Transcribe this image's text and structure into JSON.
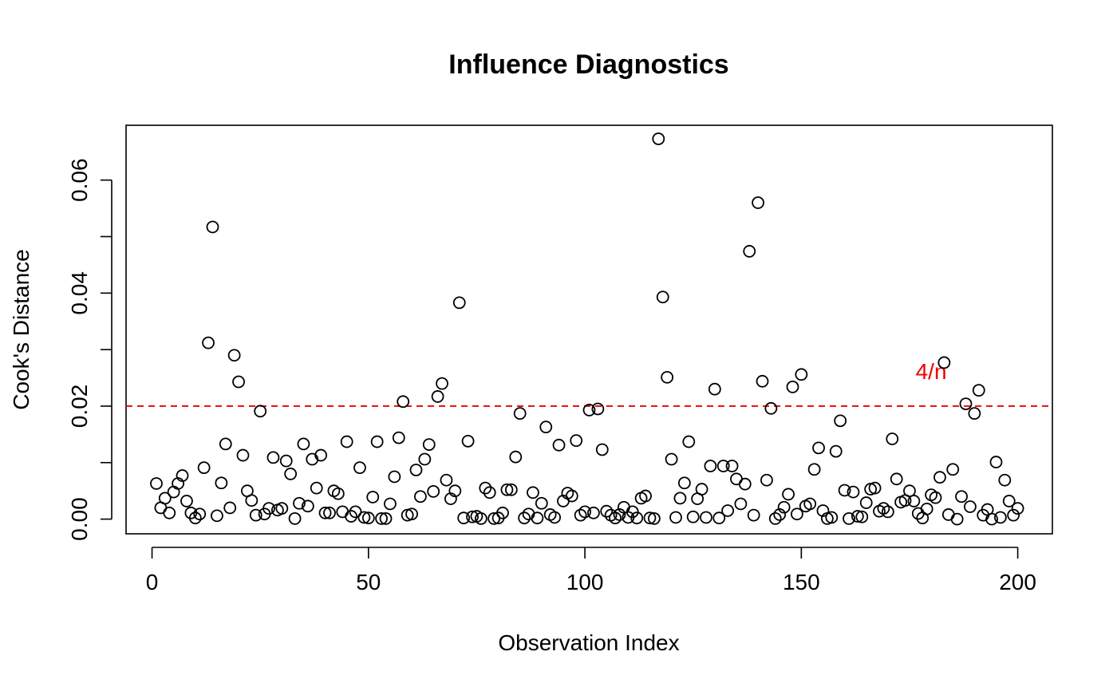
{
  "chart_data": {
    "type": "scatter",
    "title": "Influence Diagnostics",
    "xlabel": "Observation Index",
    "ylabel": "Cook's Distance",
    "xlim": [
      -6,
      208
    ],
    "ylim": [
      -0.0026,
      0.0697
    ],
    "x_ticks": [
      0,
      50,
      100,
      150,
      200
    ],
    "x_tick_labels": [
      "0",
      "50",
      "100",
      "150",
      "200"
    ],
    "y_ticks": [
      0.0,
      0.01,
      0.02,
      0.03,
      0.04,
      0.05,
      0.06
    ],
    "y_tick_labels": [
      "0.00",
      "",
      "0.02",
      "",
      "0.04",
      "",
      "0.06"
    ],
    "grid": false,
    "reference_line": {
      "y": 0.02,
      "label": "4/n",
      "label_x": 180,
      "label_y": 0.0262,
      "color": "#ee0000",
      "style": "dashed"
    },
    "point_color": "#000000",
    "x": [
      1,
      2,
      3,
      4,
      5,
      6,
      7,
      8,
      9,
      10,
      11,
      12,
      13,
      14,
      15,
      16,
      17,
      18,
      19,
      20,
      21,
      22,
      23,
      24,
      25,
      26,
      27,
      28,
      29,
      30,
      31,
      32,
      33,
      34,
      35,
      36,
      37,
      38,
      39,
      40,
      41,
      42,
      43,
      44,
      45,
      46,
      47,
      48,
      49,
      50,
      51,
      52,
      53,
      54,
      55,
      56,
      57,
      58,
      59,
      60,
      61,
      62,
      63,
      64,
      65,
      66,
      67,
      68,
      69,
      70,
      71,
      72,
      73,
      74,
      75,
      76,
      77,
      78,
      79,
      80,
      81,
      82,
      83,
      84,
      85,
      86,
      87,
      88,
      89,
      90,
      91,
      92,
      93,
      94,
      95,
      96,
      97,
      98,
      99,
      100,
      101,
      102,
      103,
      104,
      105,
      106,
      107,
      108,
      109,
      110,
      111,
      112,
      113,
      114,
      115,
      116,
      117,
      118,
      119,
      120,
      121,
      122,
      123,
      124,
      125,
      126,
      127,
      128,
      129,
      130,
      131,
      132,
      133,
      134,
      135,
      136,
      137,
      138,
      139,
      140,
      141,
      142,
      143,
      144,
      145,
      146,
      147,
      148,
      149,
      150,
      151,
      152,
      153,
      154,
      155,
      156,
      157,
      158,
      159,
      160,
      161,
      162,
      163,
      164,
      165,
      166,
      167,
      168,
      169,
      170,
      171,
      172,
      173,
      174,
      175,
      176,
      177,
      178,
      179,
      180,
      181,
      182,
      183,
      184,
      185,
      186,
      187,
      188,
      189,
      190,
      191,
      192,
      193,
      194,
      195,
      196,
      197,
      198,
      199,
      200
    ],
    "y": [
      0.0063,
      0.002,
      0.0037,
      0.0011,
      0.0048,
      0.0063,
      0.0077,
      0.0032,
      0.0011,
      0.0002,
      0.0009,
      0.0091,
      0.0312,
      0.0517,
      0.0006,
      0.0064,
      0.0133,
      0.002,
      0.029,
      0.0243,
      0.0113,
      0.005,
      0.0033,
      0.0007,
      0.0191,
      0.0009,
      0.0019,
      0.0109,
      0.0016,
      0.0019,
      0.0103,
      0.008,
      0.0001,
      0.0028,
      0.0133,
      0.0023,
      0.0106,
      0.0055,
      0.0113,
      0.0011,
      0.0011,
      0.005,
      0.0045,
      0.0013,
      0.0137,
      0.0005,
      0.0013,
      0.0091,
      0.0003,
      0.0002,
      0.0039,
      0.0137,
      0.0001,
      0.0001,
      0.0027,
      0.0075,
      0.0144,
      0.0208,
      0.0007,
      0.0009,
      0.0087,
      0.004,
      0.0106,
      0.0132,
      0.0049,
      0.0217,
      0.024,
      0.0069,
      0.0036,
      0.005,
      0.0383,
      0.0002,
      0.0138,
      0.0004,
      0.0005,
      0.0001,
      0.0055,
      0.0047,
      0.0001,
      0.0002,
      0.0011,
      0.0052,
      0.0052,
      0.011,
      0.0187,
      0.0002,
      0.0009,
      0.0047,
      0.0002,
      0.0028,
      0.0163,
      0.0008,
      0.0003,
      0.0131,
      0.0032,
      0.0046,
      0.0041,
      0.0139,
      0.0007,
      0.0013,
      0.0193,
      0.0011,
      0.0195,
      0.0123,
      0.0014,
      0.0007,
      0.0002,
      0.0008,
      0.0021,
      0.0003,
      0.0013,
      0.0002,
      0.0037,
      0.0041,
      0.0002,
      0.0001,
      0.0673,
      0.0393,
      0.0251,
      0.0106,
      0.0003,
      0.0037,
      0.0064,
      0.0137,
      0.0004,
      0.0036,
      0.0053,
      0.0003,
      0.0094,
      0.023,
      0.0002,
      0.0094,
      0.0015,
      0.0094,
      0.0071,
      0.0027,
      0.0062,
      0.0474,
      0.0007,
      0.056,
      0.0244,
      0.0069,
      0.0196,
      0.0001,
      0.0008,
      0.0021,
      0.0044,
      0.0234,
      0.0009,
      0.0256,
      0.0023,
      0.0027,
      0.0088,
      0.0126,
      0.0015,
      0.0001,
      0.0003,
      0.012,
      0.0174,
      0.0051,
      0.0001,
      0.0048,
      0.0005,
      0.0004,
      0.0029,
      0.0053,
      0.0055,
      0.0014,
      0.0019,
      0.0013,
      0.0142,
      0.0071,
      0.003,
      0.0033,
      0.005,
      0.0032,
      0.001,
      0.0002,
      0.0018,
      0.0043,
      0.0038,
      0.0074,
      0.0277,
      0.0008,
      0.0088,
      0.0,
      0.004,
      0.0204,
      0.0022,
      0.0187,
      0.0228,
      0.0007,
      0.0017,
      0.0,
      0.0101,
      0.0003,
      0.0069,
      0.0032,
      0.0007,
      0.0019
    ]
  }
}
